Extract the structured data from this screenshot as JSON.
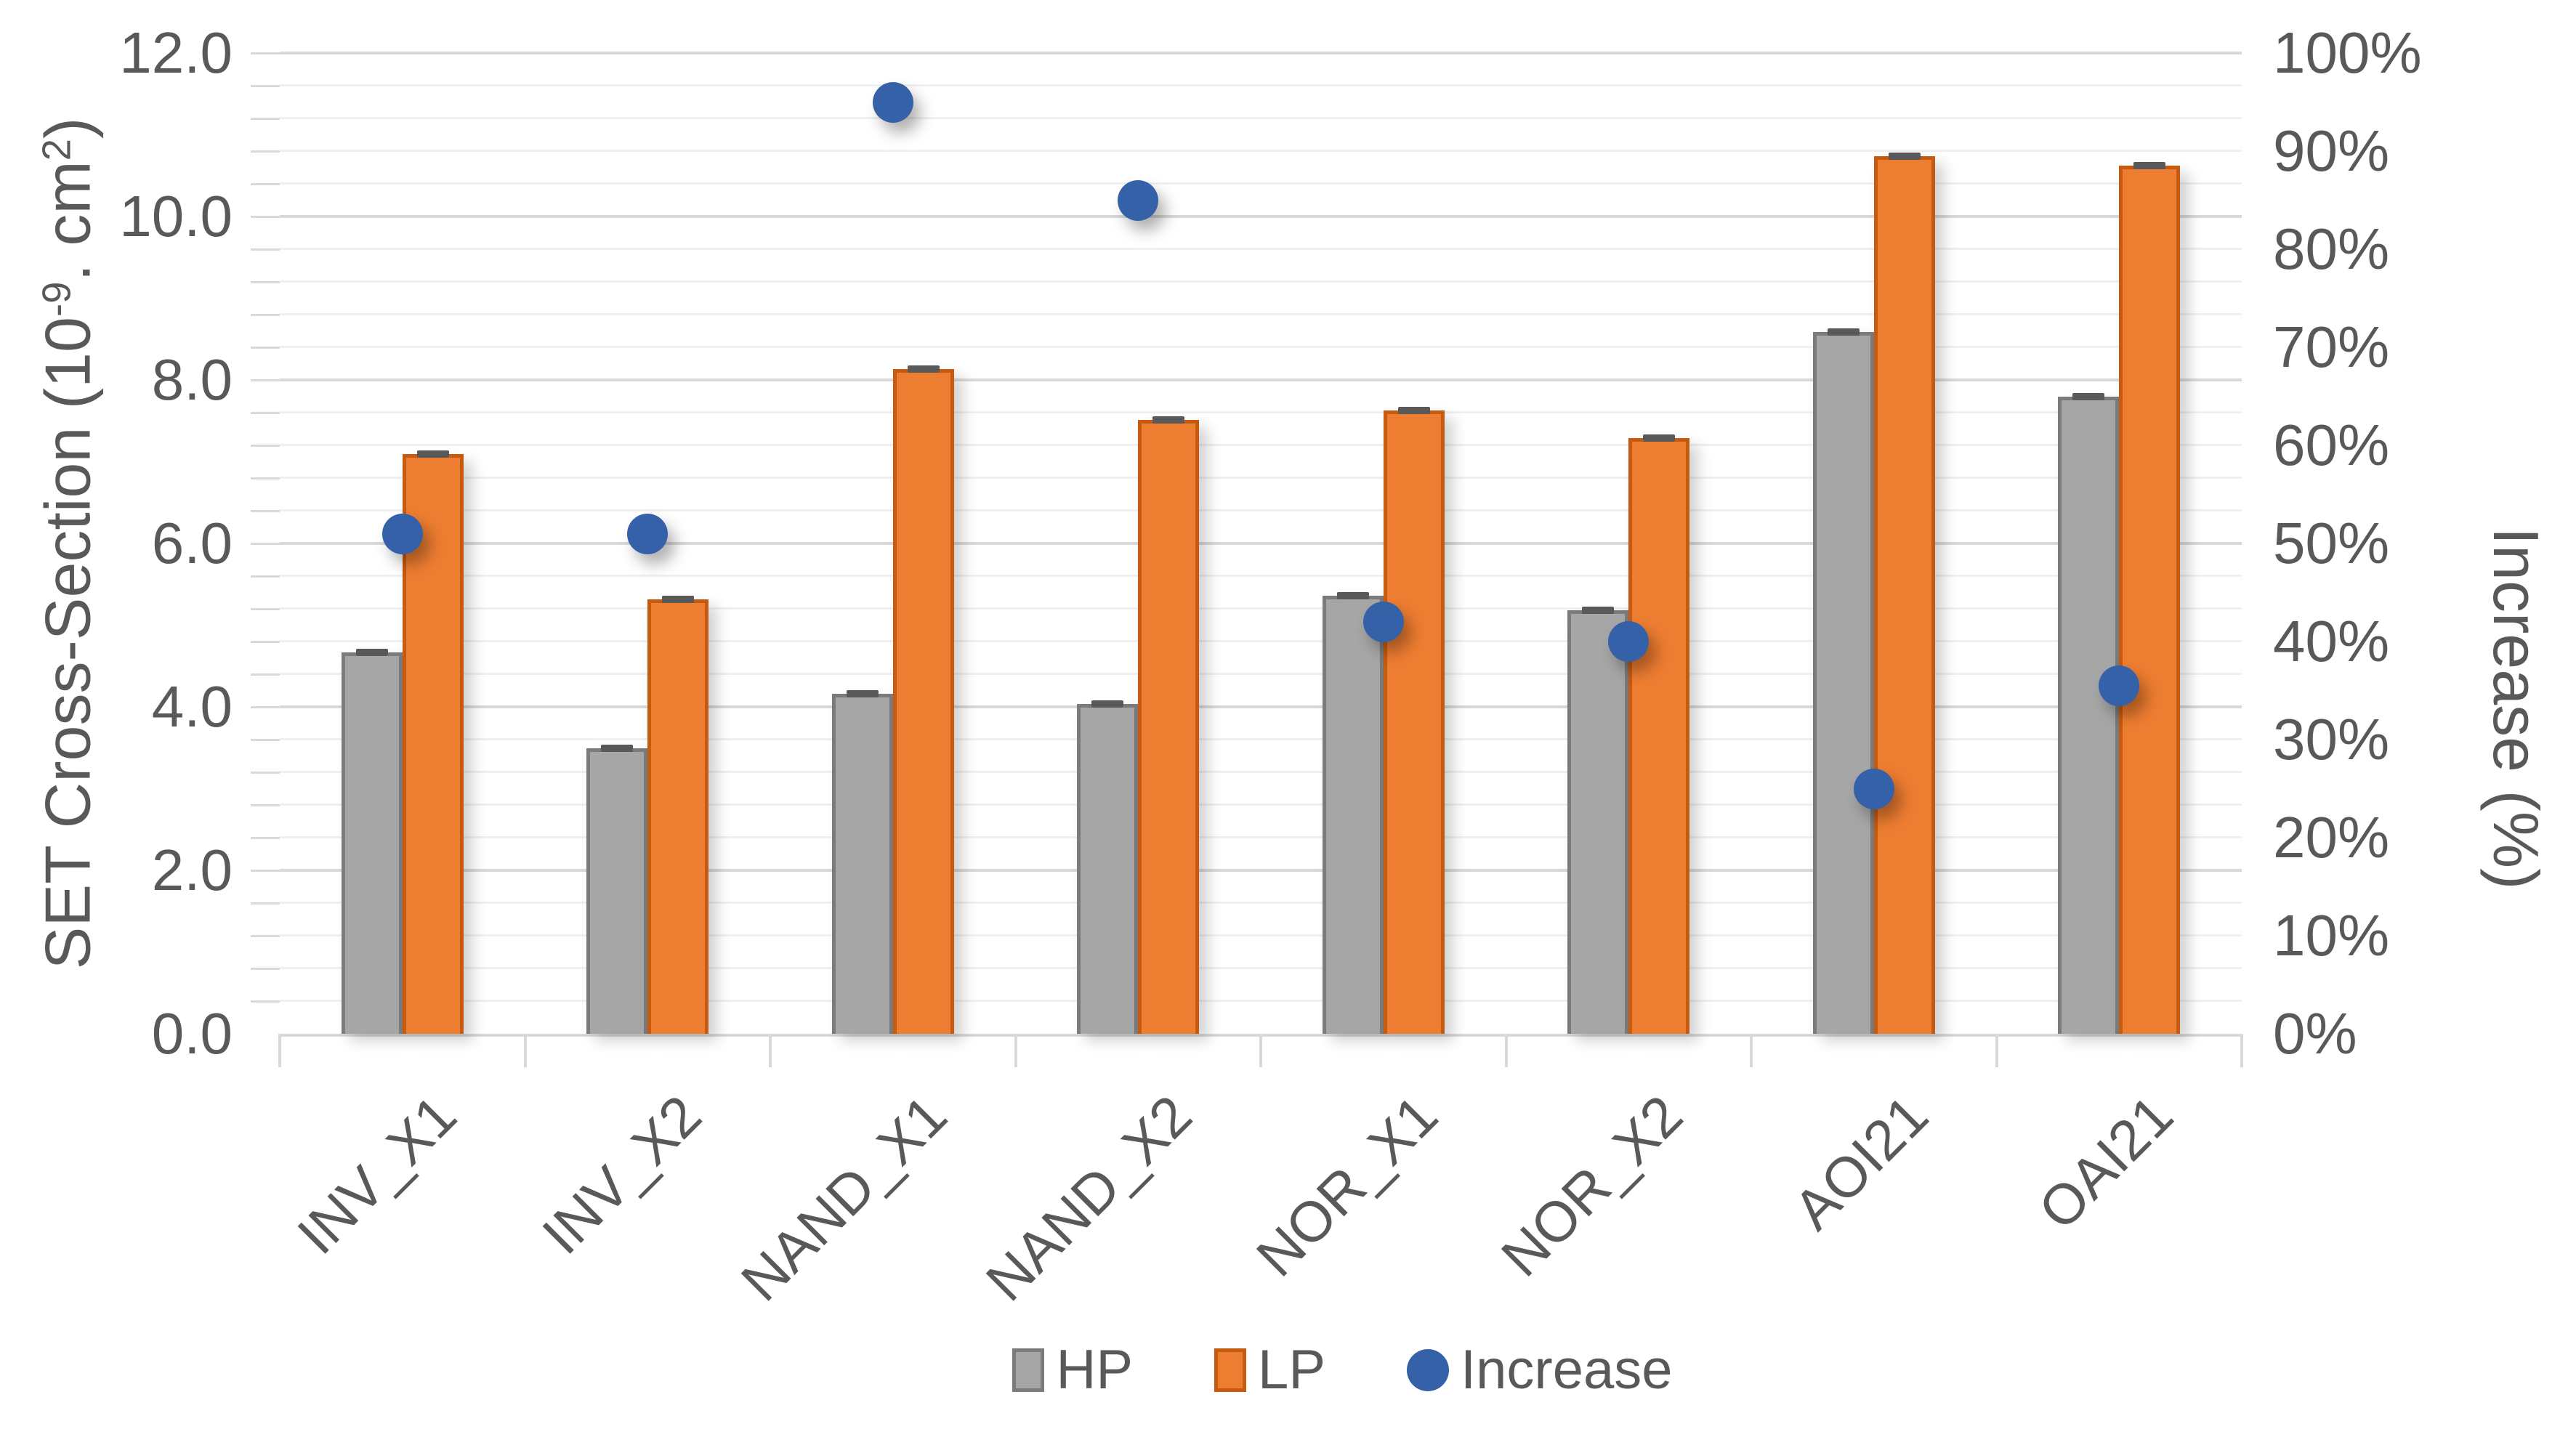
{
  "chart_data": {
    "type": "bar",
    "subtype": "clustered-columns-with-scatter-overlay-dual-axis",
    "categories": [
      "INV_X1",
      "INV_X2",
      "NAND_X1",
      "NAND_X2",
      "NOR_X1",
      "NOR_X2",
      "AOI21",
      "OAI21"
    ],
    "series": [
      {
        "name": "HP",
        "type": "bar",
        "axis": "left",
        "fill": "#a6a6a6",
        "border": "#7b7b7b",
        "values": [
          4.67,
          3.49,
          4.16,
          4.04,
          5.36,
          5.18,
          8.59,
          7.8
        ]
      },
      {
        "name": "LP",
        "type": "bar",
        "axis": "left",
        "fill": "#ed7d31",
        "border": "#c55a11",
        "values": [
          7.09,
          5.32,
          8.13,
          7.51,
          7.63,
          7.29,
          10.74,
          10.62
        ]
      },
      {
        "name": "Increase",
        "type": "scatter",
        "axis": "right",
        "fill": "#3561a8",
        "values": [
          51,
          51,
          95,
          85,
          42,
          40,
          25,
          35.5
        ]
      }
    ],
    "left_axis": {
      "title": "SET Cross-Section (10⁻⁹. cm²)",
      "title_parts": {
        "t1": "SET Cross-Section (10",
        "sup1": "-9",
        "t2": ". cm",
        "sup2": "2",
        "t3": ")"
      },
      "min": 0,
      "max": 12,
      "major_unit": 2,
      "minor_unit": 0.4,
      "tick_labels": [
        "0.0",
        "2.0",
        "4.0",
        "6.0",
        "8.0",
        "10.0",
        "12.0"
      ]
    },
    "right_axis": {
      "title": "Increase (%)",
      "min": 0,
      "max": 100,
      "major_unit": 10,
      "tick_labels": [
        "0%",
        "10%",
        "20%",
        "30%",
        "40%",
        "50%",
        "60%",
        "70%",
        "80%",
        "90%",
        "100%"
      ]
    },
    "gridlines": {
      "major_color": "#d9d9d9",
      "minor_color": "#f0f0f0",
      "show_minor": true
    },
    "error_bars": {
      "cap_color": "#595959"
    },
    "legend": {
      "position": "bottom",
      "items": [
        {
          "label": "HP",
          "marker": "square",
          "fill": "#a6a6a6",
          "border": "#7b7b7b"
        },
        {
          "label": "LP",
          "marker": "square",
          "fill": "#ed7d31",
          "border": "#c55a11"
        },
        {
          "label": "Increase",
          "marker": "circle",
          "fill": "#3561a8"
        }
      ]
    },
    "text_color": "#595959",
    "background": "#ffffff",
    "ylim_left": [
      0,
      12
    ],
    "ylim_right": [
      0,
      100
    ]
  }
}
